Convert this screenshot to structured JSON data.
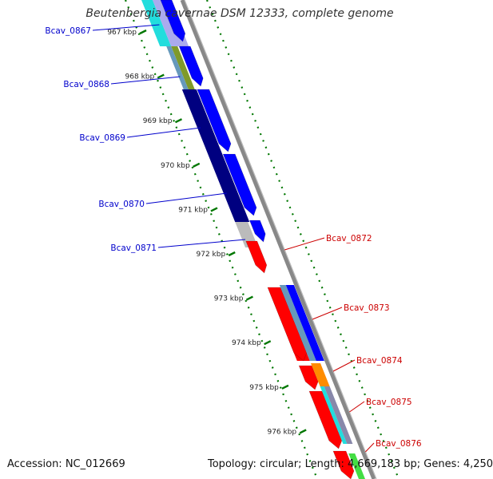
{
  "title": "Beutenbergia cavernae DSM 12333, complete genome",
  "footer": {
    "accession": "Accession: NC_012669",
    "summary": "Topology: circular; Length: 4,669,183 bp; Genes: 4,250"
  },
  "ticks": [
    "967 kbp",
    "968 kbp",
    "969 kbp",
    "970 kbp",
    "971 kbp",
    "972 kbp",
    "973 kbp",
    "974 kbp",
    "975 kbp",
    "976 kbp"
  ],
  "genes_left": [
    "Bcav_0867",
    "Bcav_0868",
    "Bcav_0869",
    "Bcav_0870",
    "Bcav_0871"
  ],
  "genes_right": [
    "Bcav_0872",
    "Bcav_0873",
    "Bcav_0874",
    "Bcav_0875",
    "Bcav_0876"
  ],
  "colors": {
    "left_label": "#0000cc",
    "right_label": "#cc0000",
    "tick_dots": "#007700",
    "backbone": "#888888",
    "forward_cds": "#ff0000",
    "reverse_cds": "#0000ff",
    "reverse_gene": "#000080"
  }
}
